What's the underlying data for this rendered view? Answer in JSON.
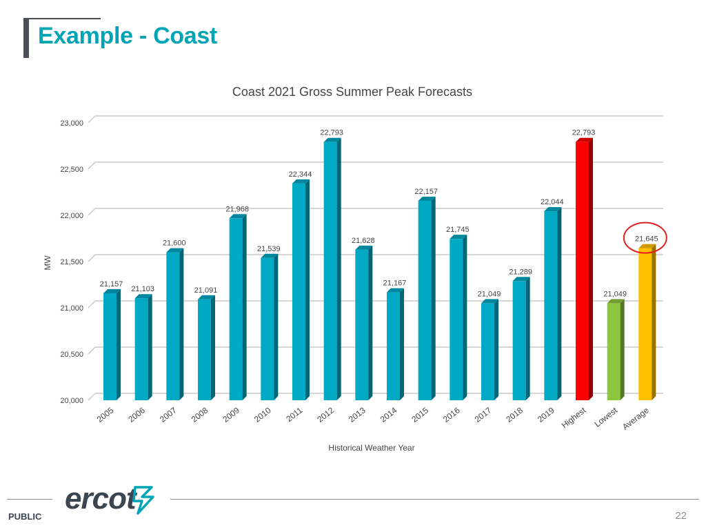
{
  "slide": {
    "title": "Example - Coast",
    "public_label": "PUBLIC",
    "page_number": "22",
    "logo_text": "ercot"
  },
  "colors": {
    "title": "#00a5b5",
    "bar_default": "#00a9c4",
    "bar_highest": "#ff0000",
    "bar_lowest": "#8dc63f",
    "bar_average": "#ffc000",
    "highlight_circle": "#e02020"
  },
  "chart_data": {
    "type": "bar",
    "title": "Coast 2021 Gross Summer Peak Forecasts",
    "xlabel": "Historical Weather Year",
    "ylabel": "MW",
    "ylim": [
      20000,
      23000
    ],
    "yticks": [
      "20,000",
      "20,500",
      "21,000",
      "21,500",
      "22,000",
      "22,500",
      "23,000"
    ],
    "grid": true,
    "categories": [
      "2005",
      "2006",
      "2007",
      "2008",
      "2009",
      "2010",
      "2011",
      "2012",
      "2013",
      "2014",
      "2015",
      "2016",
      "2017",
      "2018",
      "2019",
      "Highest",
      "Lowest",
      "Average"
    ],
    "values": [
      21157,
      21103,
      21600,
      21091,
      21968,
      21539,
      22344,
      22793,
      21628,
      21167,
      22157,
      21745,
      21049,
      21289,
      22044,
      22793,
      21049,
      21645
    ],
    "data_labels": [
      "21,157",
      "21,103",
      "21,600",
      "21,091",
      "21,968",
      "21,539",
      "22,344",
      "22,793",
      "21,628",
      "21,167",
      "22,157",
      "21,745",
      "21,049",
      "21,289",
      "22,044",
      "22,793",
      "21,049",
      "21,645"
    ],
    "highlighted_category": "Average"
  }
}
